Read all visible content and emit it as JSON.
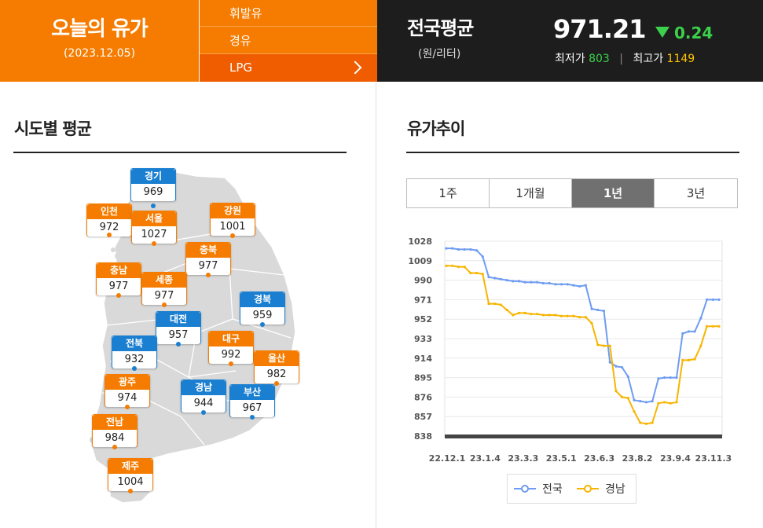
{
  "header": {
    "title": "오늘의 유가",
    "date": "(2023.12.05)",
    "fuel_menu": [
      {
        "label": "휘발유"
      },
      {
        "label": "경유"
      },
      {
        "label": "LPG"
      }
    ],
    "national": {
      "title": "전국평균",
      "unit": "(원/리터)",
      "price": "971.21",
      "change": "0.24",
      "min_label": "최저가",
      "min_value": "803",
      "max_label": "최고가",
      "max_value": "1149"
    },
    "colors": {
      "accent": "#f57c00",
      "active_menu": "#f05c00",
      "down": "#3bd14a",
      "max": "#ffc400",
      "dark": "#1d1d1d"
    }
  },
  "regional": {
    "title": "시도별 평균",
    "regions": [
      {
        "name": "경기",
        "value": "969",
        "color": "blue"
      },
      {
        "name": "인천",
        "value": "972",
        "color": "orange"
      },
      {
        "name": "서울",
        "value": "1027",
        "color": "orange"
      },
      {
        "name": "강원",
        "value": "1001",
        "color": "orange"
      },
      {
        "name": "충북",
        "value": "977",
        "color": "orange"
      },
      {
        "name": "충남",
        "value": "977",
        "color": "orange"
      },
      {
        "name": "세종",
        "value": "977",
        "color": "orange"
      },
      {
        "name": "경북",
        "value": "959",
        "color": "blue"
      },
      {
        "name": "대전",
        "value": "957",
        "color": "blue"
      },
      {
        "name": "전북",
        "value": "932",
        "color": "blue"
      },
      {
        "name": "대구",
        "value": "992",
        "color": "orange"
      },
      {
        "name": "울산",
        "value": "982",
        "color": "orange"
      },
      {
        "name": "광주",
        "value": "974",
        "color": "orange"
      },
      {
        "name": "경남",
        "value": "944",
        "color": "blue"
      },
      {
        "name": "부산",
        "value": "967",
        "color": "blue"
      },
      {
        "name": "전남",
        "value": "984",
        "color": "orange"
      },
      {
        "name": "제주",
        "value": "1004",
        "color": "orange"
      }
    ]
  },
  "trend": {
    "title": "유가추이",
    "tabs": [
      {
        "label": "1주"
      },
      {
        "label": "1개월"
      },
      {
        "label": "1년",
        "active": true
      },
      {
        "label": "3년"
      }
    ]
  },
  "chart_data": {
    "type": "line",
    "y_ticks": [
      "1028",
      "1009",
      "990",
      "971",
      "952",
      "933",
      "914",
      "895",
      "876",
      "857",
      "838"
    ],
    "x_ticks": [
      "22.12.1",
      "23.1.4",
      "23.3.3",
      "23.5.1",
      "23.6.3",
      "23.8.2",
      "23.9.4",
      "23.11.3"
    ],
    "ylim": [
      838,
      1028
    ],
    "grid": true,
    "legend_position": "bottom",
    "series": [
      {
        "name": "전국",
        "color": "#6e9cf2",
        "values": [
          1021,
          1021,
          1020,
          1020,
          1020,
          1019,
          1013,
          993,
          992,
          991,
          990,
          989,
          989,
          988,
          988,
          988,
          987,
          987,
          986,
          986,
          986,
          985,
          984,
          985,
          962,
          961,
          960,
          910,
          906,
          905,
          896,
          873,
          872,
          871,
          872,
          894,
          895,
          895,
          895,
          938,
          940,
          940,
          953,
          971,
          971,
          971
        ]
      },
      {
        "name": "경남",
        "color": "#f7b500",
        "values": [
          1004,
          1004,
          1003,
          1003,
          997,
          997,
          996,
          967,
          967,
          966,
          961,
          956,
          958,
          958,
          957,
          957,
          956,
          956,
          956,
          955,
          955,
          955,
          954,
          954,
          948,
          927,
          926,
          926,
          882,
          876,
          875,
          862,
          851,
          850,
          851,
          870,
          871,
          870,
          871,
          912,
          912,
          913,
          926,
          945,
          945,
          945
        ]
      }
    ]
  }
}
